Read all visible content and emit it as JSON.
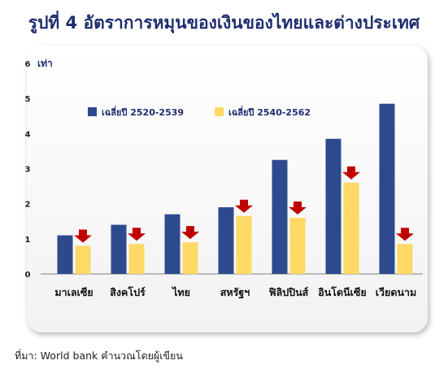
{
  "title": "รูปที่ 4 อัตราการหมุนของเงินของไทยและต่างประเทศ",
  "source": "ที่มา: World bank คำนวณโดยผู้เขียน",
  "colors": {
    "series_1": "#2e4a8e",
    "series_2": "#ffd966",
    "arrow": "#c00000",
    "text": "#1f2d6e"
  },
  "chart_data": {
    "type": "bar",
    "ylabel": "เท่า",
    "ylim": [
      0,
      6
    ],
    "yticks": [
      "0",
      "1",
      "2",
      "3",
      "4",
      "5",
      "6"
    ],
    "categories": [
      "มาเลเซีย",
      "สิงคโปร์",
      "ไทย",
      "สหรัฐฯ",
      "ฟิลิปปินส์",
      "อินโดนีเซีย",
      "เวียดนาม"
    ],
    "series": [
      {
        "name": "เฉลี่ยปี 2520-2539",
        "values": [
          1.1,
          1.4,
          1.7,
          1.9,
          3.25,
          3.85,
          4.85
        ]
      },
      {
        "name": "เฉลี่ยปี 2540-2562",
        "values": [
          0.8,
          0.85,
          0.9,
          1.65,
          1.6,
          2.6,
          0.85
        ]
      }
    ],
    "annotations": {
      "decline_arrow_above_series": 1,
      "icon": "down-arrow-icon"
    },
    "grid": false,
    "legend_position": "top-left"
  }
}
